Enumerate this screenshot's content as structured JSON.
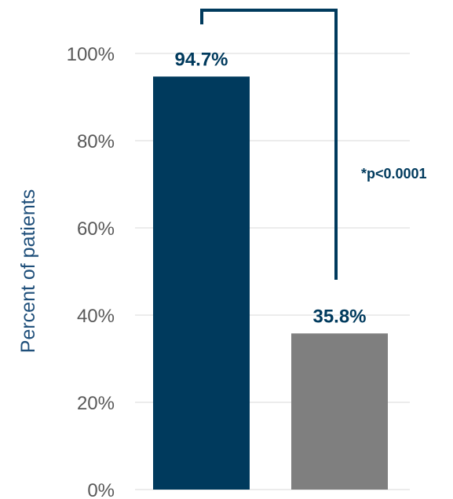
{
  "chart_data": {
    "type": "bar",
    "title": "",
    "xlabel": "",
    "ylabel": "Percent of patients",
    "ylim": [
      0,
      100
    ],
    "yticks": [
      0,
      20,
      40,
      60,
      80,
      100
    ],
    "ytick_labels": [
      "0%",
      "20%",
      "40%",
      "60%",
      "80%",
      "100%"
    ],
    "grid": true,
    "legend": "none",
    "categories": [
      "",
      ""
    ],
    "values": [
      94.7,
      35.8
    ],
    "data_labels": [
      "94.7%",
      "35.8%"
    ],
    "colors": [
      "#003a5d",
      "#7f7f7f"
    ],
    "label_color": "#003a5d",
    "grid_color": "#d9d9d9",
    "significance": {
      "text": "*p<0.0001",
      "color": "#003a5d"
    }
  }
}
